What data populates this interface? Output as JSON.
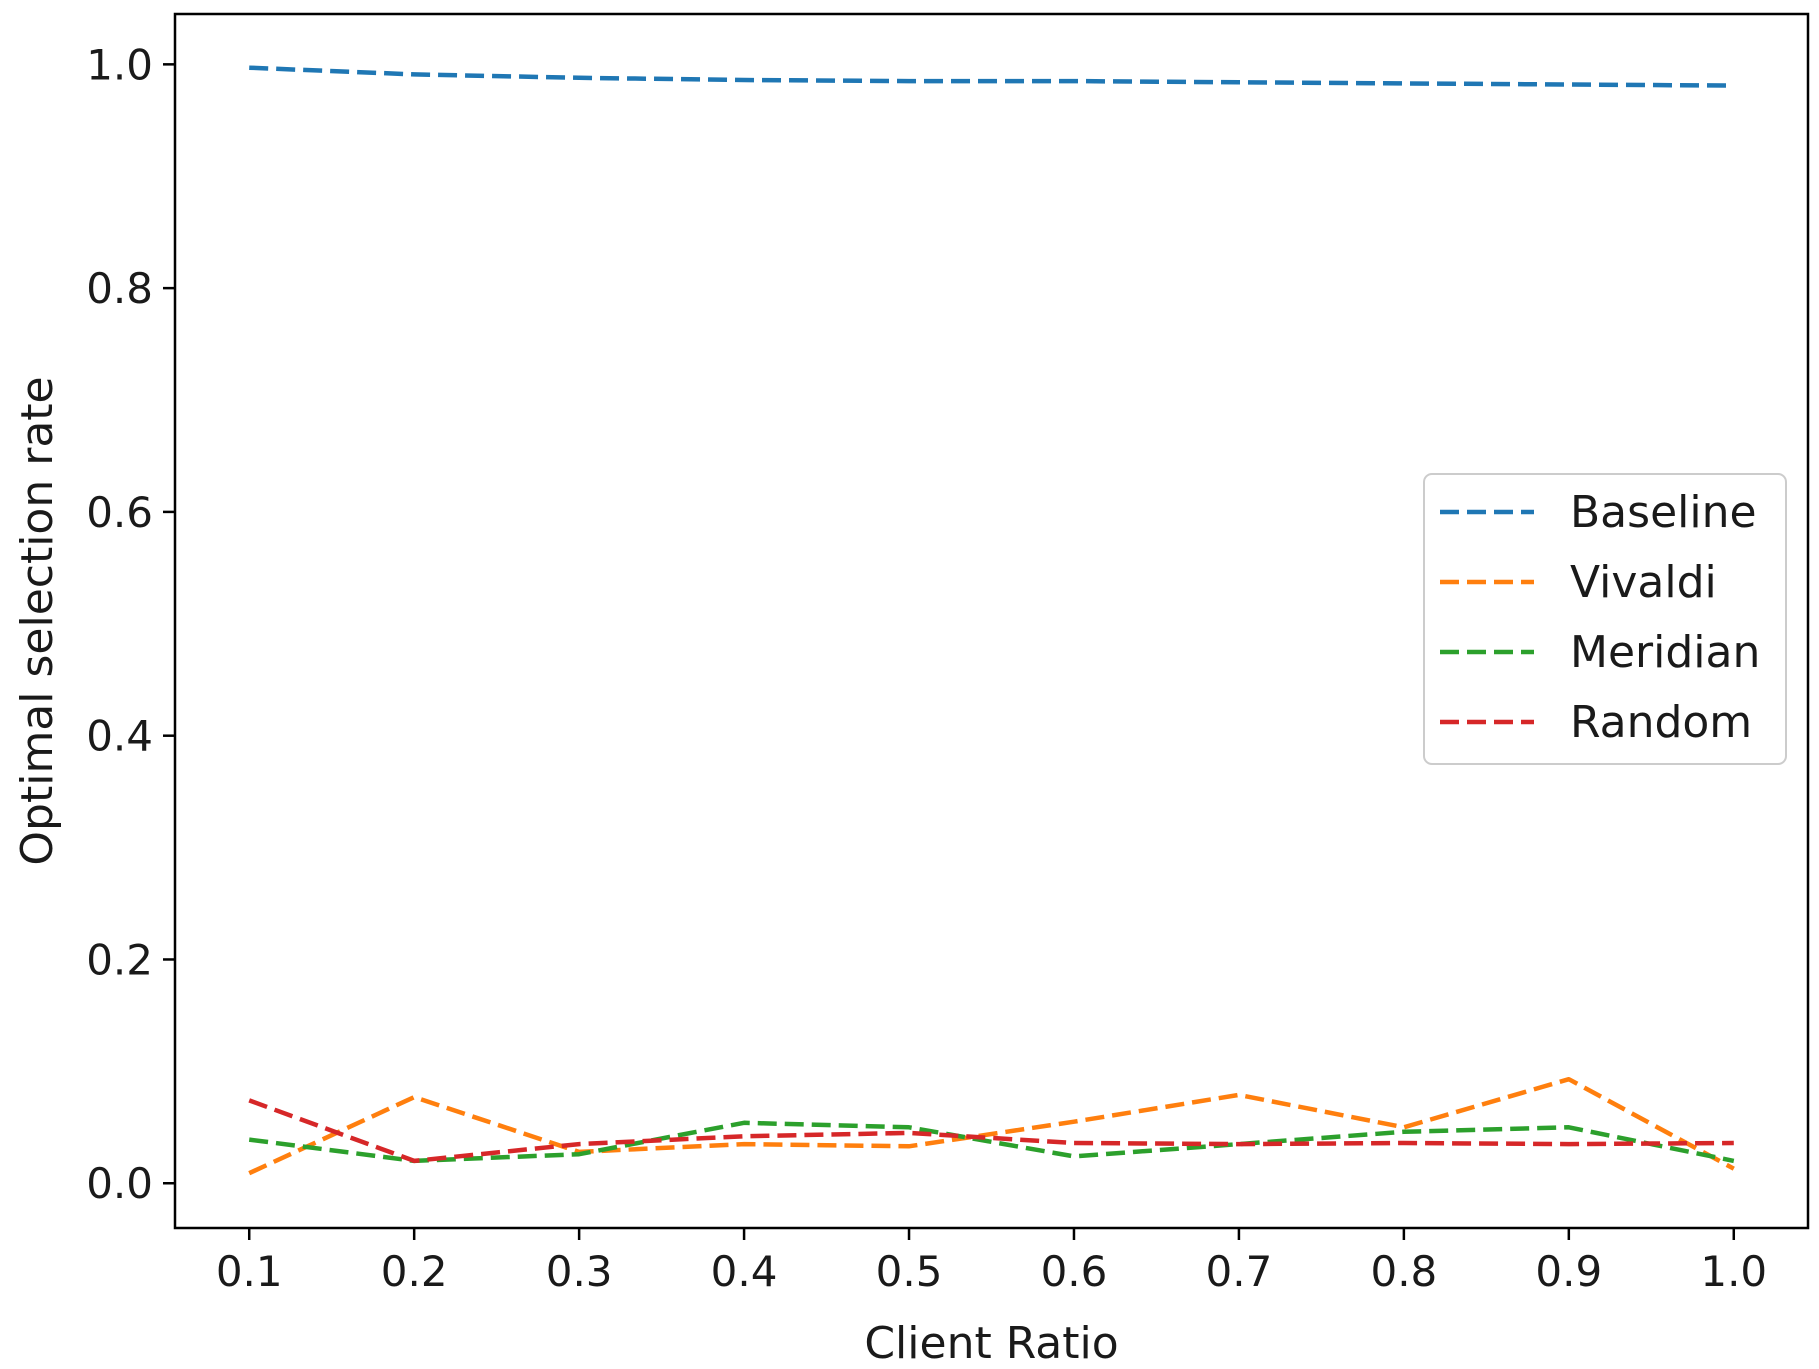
{
  "chart_data": {
    "type": "line",
    "title": "",
    "xlabel": "Client Ratio",
    "ylabel": "Optimal selection rate",
    "x": [
      0.1,
      0.2,
      0.3,
      0.4,
      0.5,
      0.6,
      0.7,
      0.8,
      0.9,
      1.0
    ],
    "x_tick_labels": [
      "0.1",
      "0.2",
      "0.3",
      "0.4",
      "0.5",
      "0.6",
      "0.7",
      "0.8",
      "0.9",
      "1.0"
    ],
    "y_ticks": [
      0.0,
      0.2,
      0.4,
      0.6,
      0.8,
      1.0
    ],
    "y_tick_labels": [
      "0.0",
      "0.2",
      "0.4",
      "0.6",
      "0.8",
      "1.0"
    ],
    "xlim": [
      0.055,
      1.045
    ],
    "ylim": [
      -0.04,
      1.045
    ],
    "grid": false,
    "legend_position": "center-right",
    "line_style": "dashed",
    "series": [
      {
        "name": "Baseline",
        "color": "#1f77b4",
        "values": [
          0.997,
          0.991,
          0.988,
          0.986,
          0.985,
          0.985,
          0.984,
          0.983,
          0.982,
          0.981
        ]
      },
      {
        "name": "Vivaldi",
        "color": "#ff7f0e",
        "values": [
          0.009,
          0.077,
          0.028,
          0.035,
          0.033,
          0.055,
          0.079,
          0.05,
          0.093,
          0.013
        ]
      },
      {
        "name": "Meridian",
        "color": "#2ca02c",
        "values": [
          0.039,
          0.02,
          0.026,
          0.054,
          0.05,
          0.024,
          0.035,
          0.046,
          0.05,
          0.02
        ]
      },
      {
        "name": "Random",
        "color": "#d62728",
        "values": [
          0.074,
          0.02,
          0.035,
          0.042,
          0.045,
          0.036,
          0.035,
          0.036,
          0.035,
          0.036
        ]
      }
    ]
  }
}
